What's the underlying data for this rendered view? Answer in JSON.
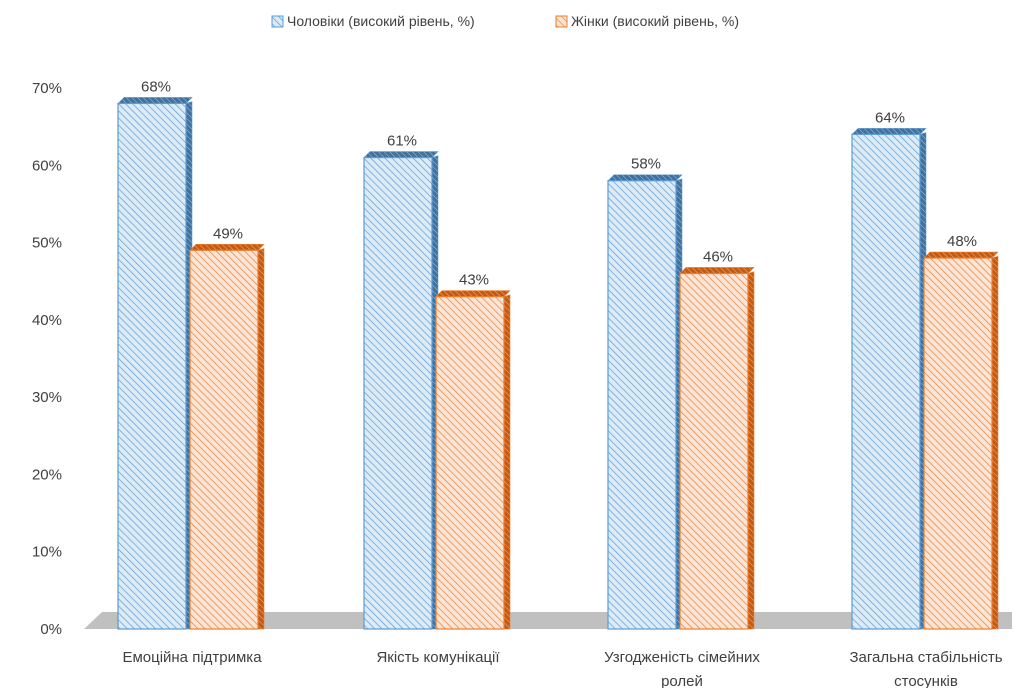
{
  "chart_data": {
    "type": "bar",
    "categories": [
      [
        "Емоційна підтримка"
      ],
      [
        "Якість комунікації"
      ],
      [
        "Узгодженість сімейних",
        "ролей"
      ],
      [
        "Загальна стабільність",
        "стосунків"
      ]
    ],
    "series": [
      {
        "name": "Чоловіки (високий рівень, %)",
        "values": [
          68,
          61,
          58,
          64
        ],
        "labels": [
          "68%",
          "61%",
          "58%",
          "64%"
        ]
      },
      {
        "name": "Жінки (високий рівень, %)",
        "values": [
          49,
          43,
          46,
          48
        ],
        "labels": [
          "49%",
          "43%",
          "46%",
          "48%"
        ]
      }
    ],
    "y_ticks": [
      "0%",
      "10%",
      "20%",
      "30%",
      "40%",
      "50%",
      "60%",
      "70%"
    ],
    "ylim": [
      0,
      70
    ],
    "legend_position": "top",
    "grid": false,
    "style": "3d-column-hatched"
  },
  "colors": {
    "men_stroke": "#5b9bd5",
    "men_fill": "#ddebf7",
    "men_side": "#41719c",
    "women_stroke": "#ed7d31",
    "women_fill": "#fbe5d6",
    "women_side": "#c55a11",
    "floor": "#c0c0c0",
    "text": "#404040"
  }
}
